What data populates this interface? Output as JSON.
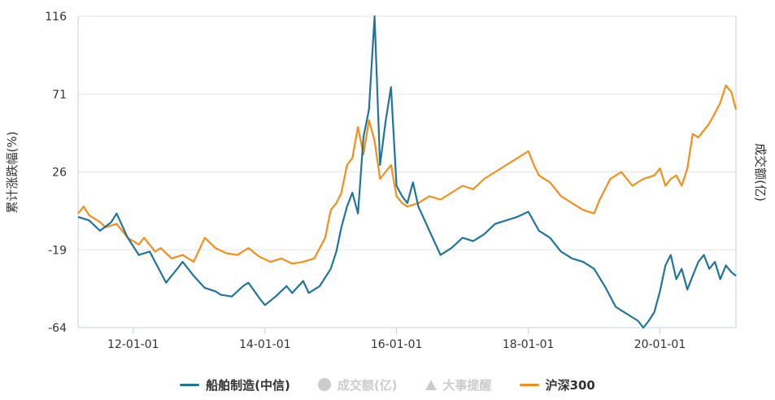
{
  "chart_data": {
    "type": "line",
    "ylabel_left": "累计涨跌幅(%)",
    "ylabel_right": "成交额(亿)",
    "yticks": [
      116,
      71,
      26,
      -19,
      -64
    ],
    "ylim": [
      -64,
      116
    ],
    "xticks": [
      "12-01-01",
      "14-01-01",
      "16-01-01",
      "18-01-01",
      "20-01-01"
    ],
    "xlim": [
      "2011-03-01",
      "2021-02-26"
    ],
    "grid": true,
    "legend_position": "bottom",
    "series": [
      {
        "name": "船舶制造(中信)",
        "color": "#21759b",
        "points": [
          [
            "2011-03-01",
            0
          ],
          [
            "2011-05-01",
            -2
          ],
          [
            "2011-07-01",
            -8
          ],
          [
            "2011-09-01",
            -3
          ],
          [
            "2011-10-01",
            2
          ],
          [
            "2011-12-01",
            -12
          ],
          [
            "2012-02-01",
            -22
          ],
          [
            "2012-04-01",
            -20
          ],
          [
            "2012-06-01",
            -32
          ],
          [
            "2012-07-01",
            -38
          ],
          [
            "2012-09-01",
            -30
          ],
          [
            "2012-10-01",
            -26
          ],
          [
            "2012-12-01",
            -34
          ],
          [
            "2013-02-01",
            -41
          ],
          [
            "2013-04-01",
            -43
          ],
          [
            "2013-05-01",
            -45
          ],
          [
            "2013-07-01",
            -46
          ],
          [
            "2013-09-01",
            -40
          ],
          [
            "2013-10-01",
            -38
          ],
          [
            "2013-12-01",
            -47
          ],
          [
            "2014-01-01",
            -51
          ],
          [
            "2014-03-01",
            -46
          ],
          [
            "2014-05-01",
            -40
          ],
          [
            "2014-06-01",
            -44
          ],
          [
            "2014-08-01",
            -37
          ],
          [
            "2014-09-01",
            -44
          ],
          [
            "2014-11-01",
            -40
          ],
          [
            "2015-01-01",
            -30
          ],
          [
            "2015-02-01",
            -20
          ],
          [
            "2015-03-01",
            -6
          ],
          [
            "2015-04-01",
            6
          ],
          [
            "2015-05-01",
            14
          ],
          [
            "2015-06-01",
            2
          ],
          [
            "2015-07-01",
            46
          ],
          [
            "2015-08-01",
            62
          ],
          [
            "2015-09-01",
            116
          ],
          [
            "2015-10-01",
            30
          ],
          [
            "2015-11-01",
            55
          ],
          [
            "2015-12-01",
            75
          ],
          [
            "2016-01-01",
            18
          ],
          [
            "2016-02-01",
            12
          ],
          [
            "2016-03-01",
            8
          ],
          [
            "2016-04-01",
            20
          ],
          [
            "2016-05-01",
            6
          ],
          [
            "2016-07-01",
            -8
          ],
          [
            "2016-09-01",
            -22
          ],
          [
            "2016-11-01",
            -18
          ],
          [
            "2017-01-01",
            -12
          ],
          [
            "2017-03-01",
            -14
          ],
          [
            "2017-05-01",
            -10
          ],
          [
            "2017-07-01",
            -4
          ],
          [
            "2017-09-01",
            -2
          ],
          [
            "2017-11-01",
            0
          ],
          [
            "2018-01-01",
            3
          ],
          [
            "2018-03-01",
            -8
          ],
          [
            "2018-05-01",
            -12
          ],
          [
            "2018-07-01",
            -20
          ],
          [
            "2018-09-01",
            -24
          ],
          [
            "2018-11-01",
            -26
          ],
          [
            "2019-01-01",
            -30
          ],
          [
            "2019-03-01",
            -40
          ],
          [
            "2019-05-01",
            -52
          ],
          [
            "2019-07-01",
            -56
          ],
          [
            "2019-09-01",
            -60
          ],
          [
            "2019-10-01",
            -64
          ],
          [
            "2019-11-01",
            -60
          ],
          [
            "2019-12-01",
            -55
          ],
          [
            "2020-01-01",
            -43
          ],
          [
            "2020-02-01",
            -28
          ],
          [
            "2020-03-01",
            -22
          ],
          [
            "2020-04-01",
            -36
          ],
          [
            "2020-05-01",
            -30
          ],
          [
            "2020-06-01",
            -42
          ],
          [
            "2020-07-01",
            -34
          ],
          [
            "2020-08-01",
            -26
          ],
          [
            "2020-09-01",
            -22
          ],
          [
            "2020-10-01",
            -30
          ],
          [
            "2020-11-01",
            -26
          ],
          [
            "2020-12-01",
            -36
          ],
          [
            "2021-01-01",
            -28
          ],
          [
            "2021-02-01",
            -32
          ],
          [
            "2021-02-26",
            -34
          ]
        ]
      },
      {
        "name": "成交额(亿)",
        "color": "#cccccc",
        "points": []
      },
      {
        "name": "大事提醒",
        "color": "#cccccc",
        "points": []
      },
      {
        "name": "沪深300",
        "color": "#f28f1c",
        "points": [
          [
            "2011-03-01",
            2
          ],
          [
            "2011-04-01",
            6
          ],
          [
            "2011-05-01",
            1
          ],
          [
            "2011-07-01",
            -3
          ],
          [
            "2011-08-01",
            -6
          ],
          [
            "2011-10-01",
            -4
          ],
          [
            "2011-12-01",
            -12
          ],
          [
            "2012-02-01",
            -16
          ],
          [
            "2012-03-01",
            -12
          ],
          [
            "2012-05-01",
            -20
          ],
          [
            "2012-06-01",
            -18
          ],
          [
            "2012-08-01",
            -24
          ],
          [
            "2012-10-01",
            -22
          ],
          [
            "2012-12-01",
            -26
          ],
          [
            "2013-02-01",
            -12
          ],
          [
            "2013-04-01",
            -18
          ],
          [
            "2013-06-01",
            -21
          ],
          [
            "2013-08-01",
            -22
          ],
          [
            "2013-10-01",
            -18
          ],
          [
            "2013-12-01",
            -23
          ],
          [
            "2014-02-01",
            -26
          ],
          [
            "2014-04-01",
            -24
          ],
          [
            "2014-06-01",
            -27
          ],
          [
            "2014-08-01",
            -26
          ],
          [
            "2014-10-01",
            -24
          ],
          [
            "2014-12-01",
            -12
          ],
          [
            "2015-01-01",
            4
          ],
          [
            "2015-02-01",
            8
          ],
          [
            "2015-03-01",
            14
          ],
          [
            "2015-04-01",
            30
          ],
          [
            "2015-05-01",
            34
          ],
          [
            "2015-06-01",
            52
          ],
          [
            "2015-07-01",
            36
          ],
          [
            "2015-08-01",
            56
          ],
          [
            "2015-09-01",
            44
          ],
          [
            "2015-10-01",
            22
          ],
          [
            "2015-11-01",
            26
          ],
          [
            "2015-12-01",
            30
          ],
          [
            "2016-01-01",
            12
          ],
          [
            "2016-02-01",
            8
          ],
          [
            "2016-03-01",
            6
          ],
          [
            "2016-05-01",
            8
          ],
          [
            "2016-07-01",
            12
          ],
          [
            "2016-09-01",
            10
          ],
          [
            "2016-11-01",
            14
          ],
          [
            "2017-01-01",
            18
          ],
          [
            "2017-03-01",
            16
          ],
          [
            "2017-05-01",
            22
          ],
          [
            "2017-07-01",
            26
          ],
          [
            "2017-09-01",
            30
          ],
          [
            "2017-11-01",
            34
          ],
          [
            "2018-01-01",
            38
          ],
          [
            "2018-02-01",
            30
          ],
          [
            "2018-03-01",
            24
          ],
          [
            "2018-05-01",
            20
          ],
          [
            "2018-07-01",
            12
          ],
          [
            "2018-09-01",
            8
          ],
          [
            "2018-11-01",
            4
          ],
          [
            "2019-01-01",
            2
          ],
          [
            "2019-02-01",
            10
          ],
          [
            "2019-04-01",
            22
          ],
          [
            "2019-06-01",
            26
          ],
          [
            "2019-08-01",
            18
          ],
          [
            "2019-10-01",
            22
          ],
          [
            "2019-12-01",
            24
          ],
          [
            "2020-01-01",
            28
          ],
          [
            "2020-02-01",
            18
          ],
          [
            "2020-03-01",
            22
          ],
          [
            "2020-04-01",
            24
          ],
          [
            "2020-05-01",
            18
          ],
          [
            "2020-06-01",
            28
          ],
          [
            "2020-07-01",
            48
          ],
          [
            "2020-08-01",
            46
          ],
          [
            "2020-09-01",
            50
          ],
          [
            "2020-10-01",
            54
          ],
          [
            "2020-11-01",
            60
          ],
          [
            "2020-12-01",
            66
          ],
          [
            "2021-01-01",
            76
          ],
          [
            "2021-02-01",
            72
          ],
          [
            "2021-02-26",
            62
          ]
        ]
      }
    ]
  }
}
